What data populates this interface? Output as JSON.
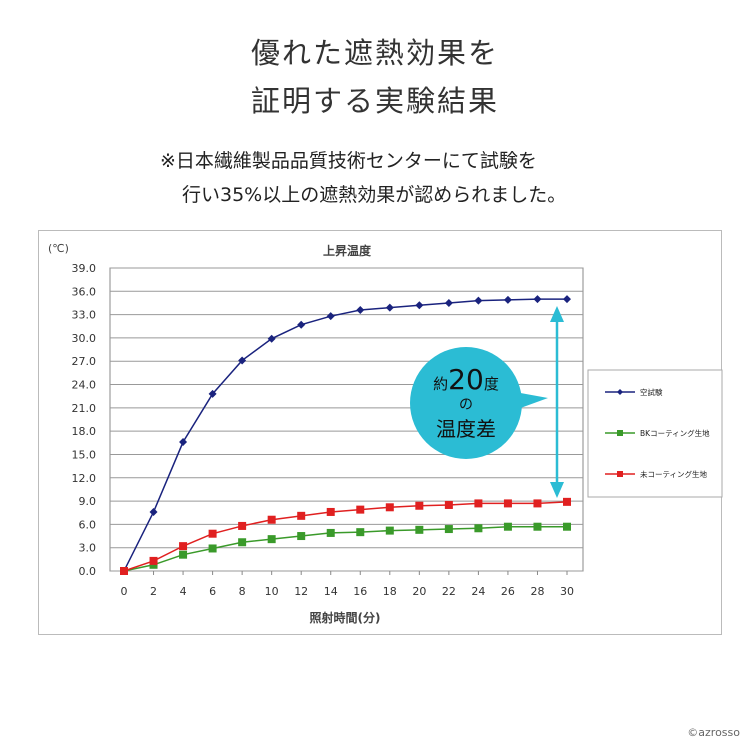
{
  "heading": {
    "line1": "優れた遮熱効果を",
    "line2": "証明する実験結果"
  },
  "note": {
    "line1": "※日本繊維製品品質技術センターにて試験を",
    "line2": "行い35%以上の遮熱効果が認められました。"
  },
  "callout": {
    "prefix": "約",
    "number": "20",
    "suffix": "度",
    "middle": "の",
    "bottom": "温度差",
    "color": "#2bbcd4"
  },
  "copyright": "©azrosso",
  "chart_data": {
    "type": "line",
    "title": "上昇温度",
    "ylabel": "(℃)",
    "xlabel": "照射時間(分)",
    "x": [
      0,
      2,
      4,
      6,
      8,
      10,
      12,
      14,
      16,
      18,
      20,
      22,
      24,
      26,
      28,
      30
    ],
    "xticks": [
      "0",
      "2",
      "4",
      "6",
      "8",
      "10",
      "12",
      "14",
      "16",
      "18",
      "20",
      "22",
      "24",
      "26",
      "28",
      "30"
    ],
    "yticks": [
      "0.0",
      "3.0",
      "6.0",
      "9.0",
      "12.0",
      "15.0",
      "18.0",
      "21.0",
      "24.0",
      "27.0",
      "30.0",
      "33.0",
      "36.0",
      "39.0"
    ],
    "ylim": [
      0,
      39
    ],
    "xlim": [
      0,
      30
    ],
    "grid": true,
    "legend_position": "right",
    "series": [
      {
        "name": "空試験",
        "color": "#1a237e",
        "marker": "diamond",
        "values": [
          0,
          7.6,
          16.6,
          22.8,
          27.1,
          29.9,
          31.7,
          32.8,
          33.6,
          33.9,
          34.2,
          34.5,
          34.8,
          34.9,
          35.0,
          35.0
        ]
      },
      {
        "name": "BKコーティング生地",
        "color": "#3a9a2a",
        "marker": "square",
        "values": [
          0,
          0.8,
          2.1,
          2.9,
          3.7,
          4.1,
          4.5,
          4.9,
          5.0,
          5.2,
          5.3,
          5.4,
          5.5,
          5.7,
          5.7,
          5.7
        ]
      },
      {
        "name": "未コーティング生地",
        "color": "#e02020",
        "marker": "square",
        "values": [
          0,
          1.3,
          3.2,
          4.8,
          5.8,
          6.6,
          7.1,
          7.6,
          7.9,
          8.2,
          8.4,
          8.5,
          8.7,
          8.7,
          8.7,
          8.9
        ]
      }
    ]
  }
}
